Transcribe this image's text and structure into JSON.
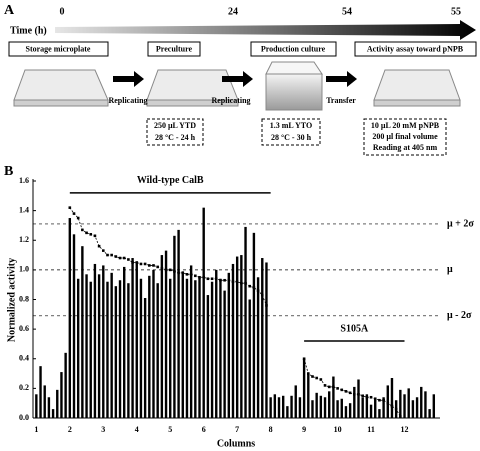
{
  "diagram": {
    "panel_label": "A",
    "time_label": "Time (h)",
    "times": [
      "0",
      "24",
      "54",
      "55"
    ],
    "steps": [
      "Storage microplate",
      "Preculture",
      "Production culture",
      "Activity assay toward pNPB"
    ],
    "transitions": [
      "Replicating",
      "Replicating",
      "Transfer"
    ],
    "conditions": [
      [
        "250 µL YTD",
        "28 °C - 24 h"
      ],
      [
        "1.3 mL YTO",
        "28 °C - 30 h"
      ],
      [
        "10 µL 20 mM pNPB",
        "200 µl final volume",
        "Reading at 405 nm"
      ]
    ]
  },
  "chart_data": {
    "type": "bar",
    "panel_label": "B",
    "y_label": "Normalized activity",
    "x_label": "Columns",
    "color": "#000000",
    "xlim": [
      0.9,
      13.06
    ],
    "xticks": [
      1,
      2,
      3,
      4,
      5,
      6,
      7,
      8,
      9,
      10,
      11,
      12
    ],
    "ylim": [
      0,
      1.6
    ],
    "yticks": [
      {
        "value": 0,
        "label": "0.0"
      },
      0.2,
      0.4,
      0.6,
      0.8,
      {
        "value": 1,
        "label": "1.0"
      },
      1.2,
      1.4,
      1.6
    ],
    "x": [
      1,
      1.125,
      1.25,
      1.375,
      1.5,
      1.625,
      1.75,
      1.875,
      2,
      2.125,
      2.25,
      2.375,
      2.5,
      2.625,
      2.75,
      2.875,
      3,
      3.125,
      3.25,
      3.375,
      3.5,
      3.625,
      3.75,
      3.875,
      4,
      4.125,
      4.25,
      4.375,
      4.5,
      4.625,
      4.75,
      4.875,
      5,
      5.125,
      5.25,
      5.375,
      5.5,
      5.625,
      5.75,
      5.875,
      6,
      6.125,
      6.25,
      6.375,
      6.5,
      6.625,
      6.75,
      6.875,
      7,
      7.125,
      7.25,
      7.375,
      7.5,
      7.625,
      7.75,
      7.875,
      8,
      8.125,
      8.25,
      8.375,
      8.5,
      8.625,
      8.75,
      8.875,
      9,
      9.125,
      9.25,
      9.375,
      9.5,
      9.625,
      9.75,
      9.875,
      10,
      10.125,
      10.25,
      10.375,
      10.5,
      10.625,
      10.75,
      10.875,
      11,
      11.125,
      11.25,
      11.375,
      11.5,
      11.625,
      11.75,
      11.875,
      12,
      12.125,
      12.25,
      12.375,
      12.5,
      12.625,
      12.75,
      12.875
    ],
    "values": [
      0.16,
      0.35,
      0.22,
      0.14,
      0.06,
      0.19,
      0.31,
      0.44,
      1.35,
      1.24,
      0.94,
      1.16,
      0.97,
      0.92,
      1.04,
      0.97,
      1.03,
      0.92,
      0.98,
      0.89,
      0.93,
      1.02,
      0.91,
      1.08,
      1.05,
      0.94,
      0.81,
      0.96,
      1.0,
      0.91,
      1.1,
      1.13,
      0.94,
      1.23,
      1.27,
      0.99,
      0.94,
      1.03,
      0.93,
      0.95,
      1.42,
      0.83,
      0.92,
      1.0,
      0.94,
      0.86,
      0.98,
      1.04,
      1.09,
      1.1,
      1.29,
      0.8,
      1.25,
      0.95,
      1.08,
      1.05,
      0.14,
      0.16,
      0.14,
      0.15,
      0.08,
      0.15,
      0.22,
      0.14,
      0.4,
      0.3,
      0.12,
      0.17,
      0.15,
      0.14,
      0.18,
      0.28,
      0.12,
      0.13,
      0.08,
      0.1,
      0.21,
      0.26,
      0.14,
      0.16,
      0.09,
      0.13,
      0.06,
      0.14,
      0.22,
      0.27,
      0.12,
      0.19,
      0.16,
      0.2,
      0.12,
      0.14,
      0.21,
      0.18,
      0.06,
      0.16
    ],
    "curves": [
      {
        "x": [
          2,
          2.125,
          2.25,
          2.375,
          2.5,
          2.625,
          2.75,
          2.875,
          3,
          3.125,
          3.25,
          3.375,
          3.5,
          3.625,
          3.75,
          3.875,
          4,
          4.125,
          4.25,
          4.375,
          4.5,
          4.625,
          4.75,
          4.875,
          5,
          5.125,
          5.25,
          5.375,
          5.5,
          5.625,
          5.75,
          5.875,
          6,
          6.125,
          6.25,
          6.375,
          6.5,
          6.625,
          6.75,
          6.875,
          7,
          7.125,
          7.25,
          7.375,
          7.5,
          7.625,
          7.75,
          7.875
        ],
        "values": [
          1.42,
          1.38,
          1.35,
          1.27,
          1.25,
          1.24,
          1.23,
          1.16,
          1.13,
          1.1,
          1.1,
          1.09,
          1.08,
          1.08,
          1.07,
          1.05,
          1.05,
          1.04,
          1.04,
          1.03,
          1.03,
          1.02,
          1.01,
          1.0,
          1.0,
          0.99,
          0.98,
          0.98,
          0.97,
          0.97,
          0.96,
          0.95,
          0.95,
          0.94,
          0.94,
          0.94,
          0.93,
          0.93,
          0.93,
          0.92,
          0.92,
          0.91,
          0.91,
          0.89,
          0.88,
          0.86,
          0.83,
          0.76
        ]
      },
      {
        "x": [
          9,
          9.125,
          9.25,
          9.375,
          9.5,
          9.625,
          9.75,
          9.875,
          10,
          10.125,
          10.25,
          10.375,
          10.5,
          10.625,
          10.75,
          10.875,
          11,
          11.125,
          11.25,
          11.375,
          11.5,
          11.625,
          11.75,
          11.875
        ],
        "values": [
          0.4,
          0.3,
          0.28,
          0.27,
          0.26,
          0.22,
          0.21,
          0.21,
          0.2,
          0.19,
          0.18,
          0.17,
          0.16,
          0.16,
          0.15,
          0.14,
          0.14,
          0.13,
          0.12,
          0.12,
          0.1,
          0.08,
          0.06,
          0.01
        ]
      }
    ],
    "reference_lines": [
      {
        "value": 1.31,
        "label": "μ + 2σ"
      },
      {
        "value": 1.0,
        "label": "μ"
      },
      {
        "value": 0.69,
        "label": "μ - 2σ"
      }
    ],
    "annotations": [
      {
        "text": "Wild-type CalB",
        "x": [
          2,
          8
        ],
        "y": 1.52
      },
      {
        "text": "S105A",
        "x": [
          9,
          12
        ],
        "y": 0.52
      }
    ]
  }
}
